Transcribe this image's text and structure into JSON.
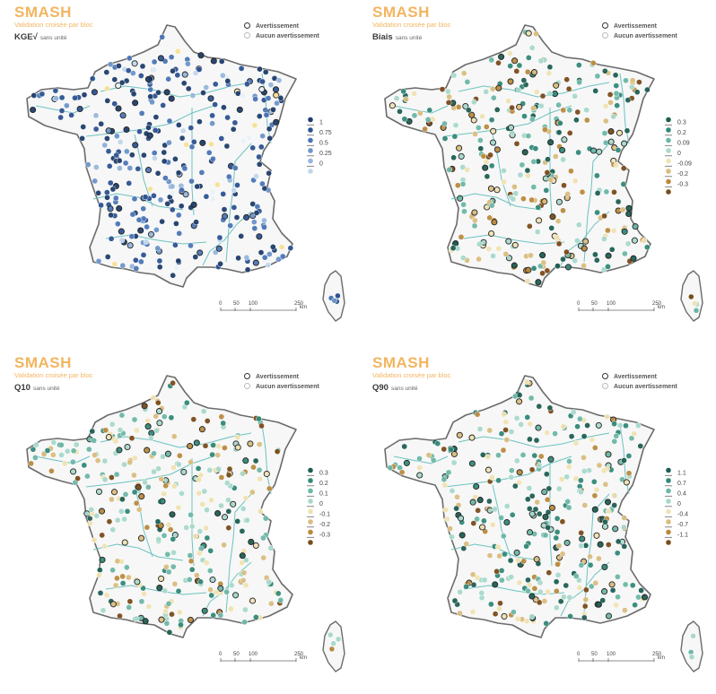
{
  "panels": [
    {
      "title": "SMASH",
      "subtitle": "Validation croisée par bloc",
      "variable": "KGE√",
      "unit": "sans unité",
      "legend_warning": "Avertissement",
      "legend_no_warning": "Aucun avertissement",
      "scale_labels": [
        "1",
        "0.75",
        "0.5",
        "0.25",
        "0"
      ],
      "palette": [
        "#1f3d6b",
        "#2c5290",
        "#4a75b5",
        "#6d95c8",
        "#96b6da",
        "#c2d7ec",
        "#e7f0f8",
        "#f7df95"
      ],
      "palette_weights": [
        0.3,
        0.24,
        0.18,
        0.1,
        0.07,
        0.05,
        0.03,
        0.03
      ],
      "scalebar_labels": [
        "0",
        "50",
        "100",
        "250"
      ],
      "scalebar_unit": "km",
      "seed": 11
    },
    {
      "title": "SMASH",
      "subtitle": "Validation croisée par bloc",
      "variable": "Biais",
      "unit": "sans unité",
      "legend_warning": "Avertissement",
      "legend_no_warning": "Aucun avertissement",
      "scale_labels": [
        "0.3",
        "0.2",
        "0.09",
        "0",
        "-0.09",
        "-0.2",
        "-0.3"
      ],
      "palette": [
        "#1d5e52",
        "#318878",
        "#6cb6a6",
        "#a8d8cb",
        "#efe2b2",
        "#d9bd7f",
        "#b98a3e",
        "#7a4b1a"
      ],
      "palette_weights": [
        0.1,
        0.12,
        0.14,
        0.16,
        0.14,
        0.12,
        0.1,
        0.12
      ],
      "scalebar_labels": [
        "0",
        "50",
        "100",
        "250"
      ],
      "scalebar_unit": "km",
      "seed": 23
    },
    {
      "title": "SMASH",
      "subtitle": "Validation croisée par bloc",
      "variable": "Q10",
      "unit": "sans unité",
      "legend_warning": "Avertissement",
      "legend_no_warning": "Aucun avertissement",
      "scale_labels": [
        "0.3",
        "0.2",
        "0.1",
        "0",
        "-0.1",
        "-0.2",
        "-0.3"
      ],
      "palette": [
        "#1d5e52",
        "#318878",
        "#6cb6a6",
        "#a8d8cb",
        "#efe2b2",
        "#d9bd7f",
        "#b98a3e",
        "#7a4b1a"
      ],
      "palette_weights": [
        0.04,
        0.1,
        0.18,
        0.22,
        0.18,
        0.14,
        0.09,
        0.05
      ],
      "scalebar_labels": [
        "0",
        "50",
        "100",
        "250"
      ],
      "scalebar_unit": "km",
      "seed": 37
    },
    {
      "title": "SMASH",
      "subtitle": "Validation croisée par bloc",
      "variable": "Q90",
      "unit": "sans unité",
      "legend_warning": "Avertissement",
      "legend_no_warning": "Aucun avertissement",
      "scale_labels": [
        "1.1",
        "0.7",
        "0.4",
        "0",
        "-0.4",
        "-0.7",
        "-1.1"
      ],
      "palette": [
        "#1d5e52",
        "#318878",
        "#6cb6a6",
        "#a8d8cb",
        "#efe2b2",
        "#d9bd7f",
        "#b98a3e",
        "#7a4b1a"
      ],
      "palette_weights": [
        0.17,
        0.13,
        0.15,
        0.16,
        0.16,
        0.12,
        0.07,
        0.04
      ],
      "scalebar_labels": [
        "0",
        "50",
        "100",
        "250"
      ],
      "scalebar_unit": "km",
      "seed": 53
    }
  ],
  "colors": {
    "title_accent": "#f2b560",
    "map_fill": "#f7f7f7",
    "border": "#6b6b6b",
    "rivers": "#6cc3c0"
  }
}
